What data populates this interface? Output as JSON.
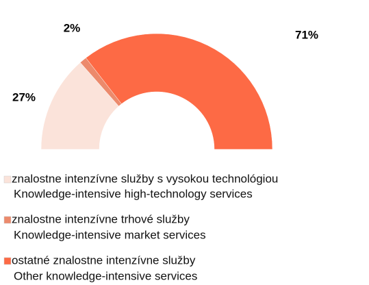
{
  "chart_data": {
    "type": "half-donut",
    "categories": [
      [
        "znalostne intenzívne služby s vysokou technológiou",
        "Knowledge-intensive high-technology services"
      ],
      [
        "znalostne intenzívne trhové služby",
        "Knowledge-intensive market services"
      ],
      [
        "ostatné znalostne intenzívne služby",
        "Other knowledge-intensive services"
      ]
    ],
    "values": [
      27,
      2,
      71
    ],
    "value_labels": [
      "27%",
      "2%",
      "71%"
    ],
    "colors": [
      "#fbe3da",
      "#ec8a6c",
      "#fd6a45"
    ]
  }
}
